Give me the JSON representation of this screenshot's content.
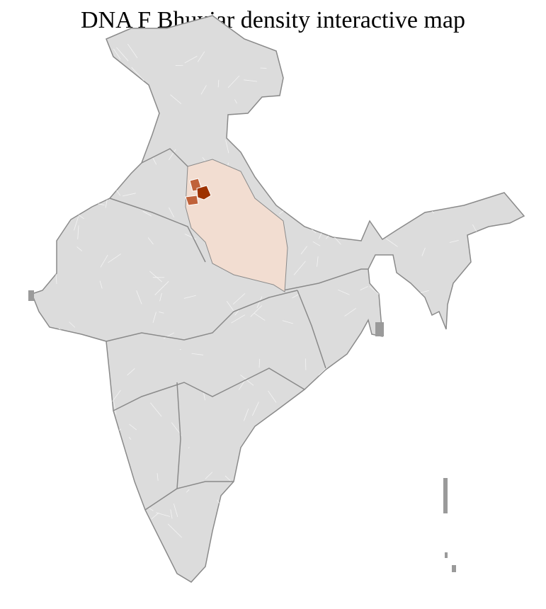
{
  "title": "DNA F Bhuyiar density interactive map",
  "colors": {
    "base_fill": "#dcdcdc",
    "border": "#8a8a8a",
    "district_lines": "#f4f4f4",
    "low_density": "#f2ddd1",
    "medium_density": "#c0623a",
    "high_density": "#9e3200"
  }
}
